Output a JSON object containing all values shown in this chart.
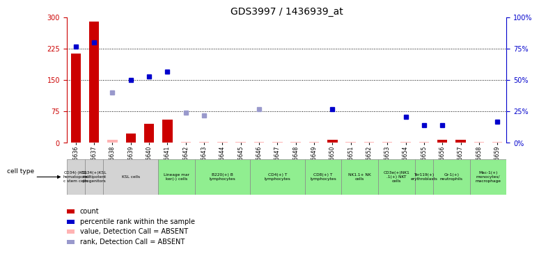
{
  "title": "GDS3997 / 1436939_at",
  "samples": [
    "GSM686636",
    "GSM686637",
    "GSM686638",
    "GSM686639",
    "GSM686640",
    "GSM686641",
    "GSM686642",
    "GSM686643",
    "GSM686644",
    "GSM686645",
    "GSM686646",
    "GSM686647",
    "GSM686648",
    "GSM686649",
    "GSM686650",
    "GSM686651",
    "GSM686652",
    "GSM686653",
    "GSM686654",
    "GSM686655",
    "GSM686656",
    "GSM686657",
    "GSM686658",
    "GSM686659"
  ],
  "count_values": [
    213,
    290,
    8,
    22,
    45,
    55,
    2,
    2,
    2,
    2,
    2,
    2,
    2,
    2,
    8,
    2,
    2,
    2,
    2,
    2,
    8,
    8,
    2,
    2
  ],
  "count_absent": [
    false,
    false,
    true,
    false,
    false,
    false,
    true,
    true,
    true,
    true,
    true,
    true,
    true,
    true,
    false,
    true,
    true,
    true,
    true,
    true,
    false,
    false,
    true,
    true
  ],
  "rank_values": [
    77,
    80,
    40,
    50,
    53,
    57,
    24,
    22,
    null,
    null,
    27,
    null,
    null,
    null,
    27,
    null,
    null,
    null,
    21,
    14,
    14,
    null,
    null,
    17
  ],
  "rank_absent": [
    false,
    false,
    true,
    false,
    false,
    false,
    true,
    true,
    null,
    null,
    true,
    null,
    null,
    null,
    false,
    null,
    null,
    null,
    false,
    false,
    false,
    null,
    null,
    false
  ],
  "ylim_left": [
    0,
    300
  ],
  "yticks_left": [
    0,
    75,
    150,
    225,
    300
  ],
  "ylim_right": [
    0,
    100
  ],
  "yticks_right": [
    0,
    25,
    50,
    75,
    100
  ],
  "cell_type_groups": [
    {
      "label": "CD34(-)KSL\nhematopoiet\nc stem cells",
      "samples": [
        0
      ],
      "color": "#d3d3d3"
    },
    {
      "label": "CD34(+)KSL\nmultipotent\nprogenitors",
      "samples": [
        1
      ],
      "color": "#d3d3d3"
    },
    {
      "label": "KSL cells",
      "samples": [
        2,
        3,
        4
      ],
      "color": "#d3d3d3"
    },
    {
      "label": "Lineage mar\nker(-) cells",
      "samples": [
        5,
        6
      ],
      "color": "#90ee90"
    },
    {
      "label": "B220(+) B\nlymphocytes",
      "samples": [
        7,
        8,
        9
      ],
      "color": "#90ee90"
    },
    {
      "label": "CD4(+) T\nlymphocytes",
      "samples": [
        10,
        11,
        12
      ],
      "color": "#90ee90"
    },
    {
      "label": "CD8(+) T\nlymphocytes",
      "samples": [
        13,
        14
      ],
      "color": "#90ee90"
    },
    {
      "label": "NK1.1+ NK\ncells",
      "samples": [
        15,
        16
      ],
      "color": "#90ee90"
    },
    {
      "label": "CD3e(+)NK1\n.1(+) NKT\ncells",
      "samples": [
        17,
        18
      ],
      "color": "#90ee90"
    },
    {
      "label": "Ter119(+)\nerythroblasts",
      "samples": [
        19
      ],
      "color": "#90ee90"
    },
    {
      "label": "Gr-1(+)\nneutrophils",
      "samples": [
        20,
        21
      ],
      "color": "#90ee90"
    },
    {
      "label": "Mac-1(+)\nmonocytes/\nmacrophage",
      "samples": [
        22,
        23
      ],
      "color": "#90ee90"
    }
  ],
  "bar_width": 0.55,
  "count_present_color": "#cc0000",
  "count_absent_color": "#ffb3b3",
  "rank_present_color": "#0000cc",
  "rank_absent_color": "#9999cc",
  "bg_color": "#ffffff",
  "left_axis_color": "#cc0000",
  "right_axis_color": "#0000cc",
  "legend_items": [
    {
      "label": "count",
      "color": "#cc0000"
    },
    {
      "label": "percentile rank within the sample",
      "color": "#0000cc"
    },
    {
      "label": "value, Detection Call = ABSENT",
      "color": "#ffb3b3"
    },
    {
      "label": "rank, Detection Call = ABSENT",
      "color": "#9999cc"
    }
  ]
}
